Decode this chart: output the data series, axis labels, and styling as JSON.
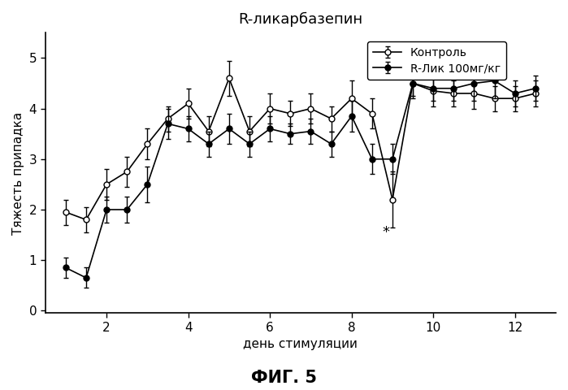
{
  "title": "R-ликарбазепин",
  "xlabel": "день стимуляции",
  "ylabel": "Тяжесть припадка",
  "fig_label": "ФИГ. 5",
  "xlim": [
    0.5,
    13.0
  ],
  "ylim": [
    -0.05,
    5.5
  ],
  "xticks": [
    2,
    4,
    6,
    8,
    10,
    12
  ],
  "yticks": [
    0,
    1,
    2,
    3,
    4,
    5
  ],
  "control_x": [
    1,
    1.5,
    2,
    2.5,
    3,
    3.5,
    4,
    4.5,
    5,
    5.5,
    6,
    6.5,
    7,
    7.5,
    8,
    8.5,
    9,
    9.5,
    10,
    10.5,
    11,
    11.5,
    12,
    12.5
  ],
  "control_y": [
    1.95,
    1.8,
    2.5,
    2.75,
    3.3,
    3.8,
    4.1,
    3.55,
    4.6,
    3.55,
    4.0,
    3.9,
    4.0,
    3.8,
    4.2,
    3.9,
    2.2,
    4.5,
    4.35,
    4.3,
    4.3,
    4.2,
    4.2,
    4.3
  ],
  "control_err": [
    0.25,
    0.25,
    0.3,
    0.3,
    0.3,
    0.25,
    0.3,
    0.3,
    0.35,
    0.3,
    0.3,
    0.25,
    0.3,
    0.25,
    0.35,
    0.3,
    0.55,
    0.3,
    0.3,
    0.25,
    0.3,
    0.25,
    0.25,
    0.25
  ],
  "treat_x": [
    1,
    1.5,
    2,
    2.5,
    3,
    3.5,
    4,
    4.5,
    5,
    5.5,
    6,
    6.5,
    7,
    7.5,
    8,
    8.5,
    9,
    9.5,
    10,
    10.5,
    11,
    11.5,
    12,
    12.5
  ],
  "treat_y": [
    0.85,
    0.65,
    2.0,
    2.0,
    2.5,
    3.7,
    3.6,
    3.3,
    3.6,
    3.3,
    3.6,
    3.5,
    3.55,
    3.3,
    3.85,
    3.0,
    3.0,
    4.5,
    4.4,
    4.4,
    4.5,
    4.55,
    4.3,
    4.4
  ],
  "treat_err": [
    0.2,
    0.2,
    0.25,
    0.25,
    0.35,
    0.3,
    0.25,
    0.25,
    0.3,
    0.25,
    0.25,
    0.2,
    0.25,
    0.25,
    0.3,
    0.3,
    0.3,
    0.25,
    0.25,
    0.25,
    0.35,
    0.35,
    0.25,
    0.25
  ],
  "legend_control": "Контроль",
  "legend_treat": "R-Лик 100мг/кг",
  "star_x": 8.85,
  "star_y": 1.55,
  "background_color": "#ffffff",
  "line_color": "#000000",
  "title_fontsize": 13,
  "label_fontsize": 11,
  "tick_fontsize": 11,
  "legend_fontsize": 10,
  "fig_label_fontsize": 15
}
